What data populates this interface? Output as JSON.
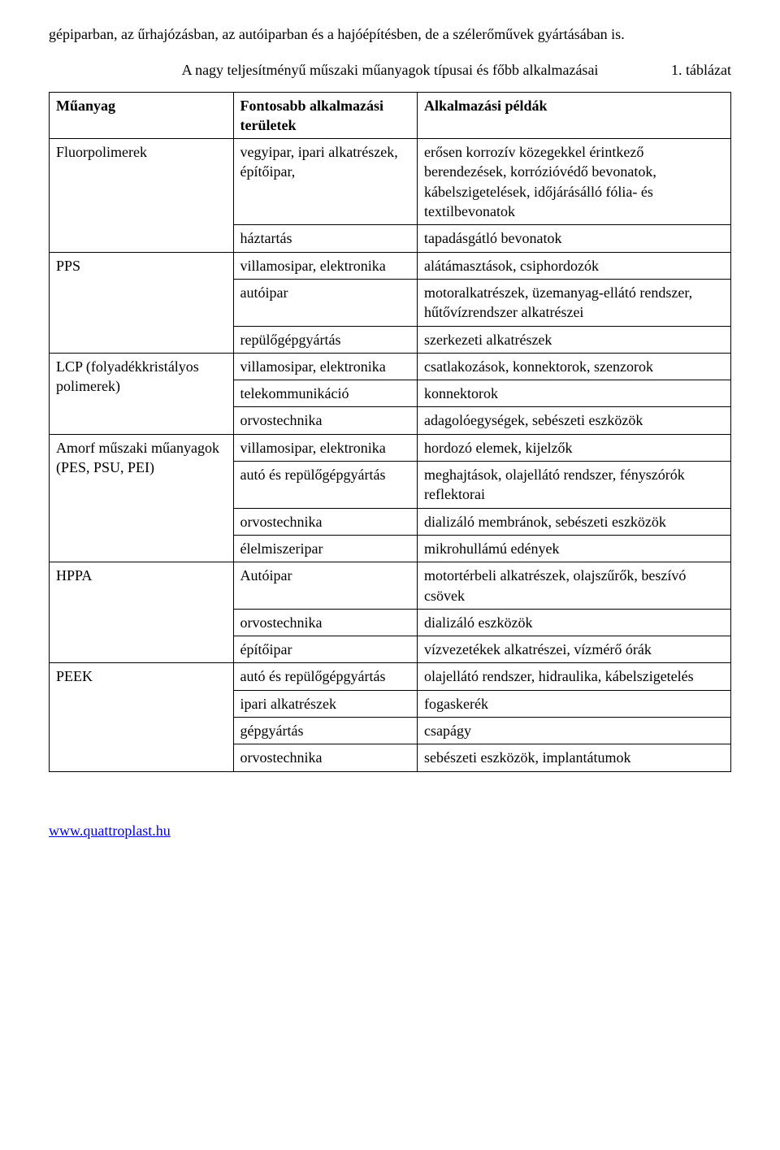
{
  "intro_text": "gépiparban, az űrhajózásban, az autóiparban és a hajóépítésben, de a szélerőművek gyártásában is.",
  "table": {
    "label": "1. táblázat",
    "caption": "A nagy teljesítményű műszaki műanyagok típusai és főbb alkalmazásai",
    "col_widths_percent": [
      27,
      27,
      46
    ],
    "border_color": "#000000",
    "font_family": "Times New Roman",
    "font_size_pt": 13,
    "headers": [
      "Műanyag",
      "Fontosabb alkalmazási területek",
      "Alkalmazási példák"
    ],
    "rows": [
      {
        "c1": "Fluorpolimerek",
        "c2": "vegyipar, ipari alkatrészek, építőipar,",
        "c3": "erősen korrozív közegekkel érintkező berendezések, korrózióvédő bevonatok, kábelszigetelések, időjárásálló fólia- és textilbevonatok",
        "rs1": 2
      },
      {
        "c2": "háztartás",
        "c3": "tapadásgátló bevonatok"
      },
      {
        "c1": "PPS",
        "c2": "villamosipar, elektronika",
        "c3": "alátámasztások, csiphordozók",
        "rs1": 3
      },
      {
        "c2": "autóipar",
        "c3": "motoralkatrészek, üzemanyag-ellátó rendszer, hűtővízrendszer alkatrészei"
      },
      {
        "c2": "repülőgépgyártás",
        "c3": "szerkezeti alkatrészek"
      },
      {
        "c1": "LCP (folyadékkristályos polimerek)",
        "c2": "villamosipar, elektronika",
        "c3": "csatlakozások, konnektorok, szenzorok",
        "rs1": 3
      },
      {
        "c2": "telekommunikáció",
        "c3": "konnektorok"
      },
      {
        "c2": "orvostechnika",
        "c3": "adagolóegységek, sebészeti eszközök"
      },
      {
        "c1": "Amorf műszaki műanyagok (PES, PSU, PEI)",
        "c2": "villamosipar, elektronika",
        "c3": "hordozó elemek, kijelzők",
        "rs1": 4
      },
      {
        "c2": "autó és repülőgépgyártás",
        "c3": "meghajtások, olajellátó rendszer, fényszórók reflektorai"
      },
      {
        "c2": "orvostechnika",
        "c3": "dializáló membránok, sebészeti eszközök"
      },
      {
        "c2": "élelmiszeripar",
        "c3": "mikrohullámú edények"
      },
      {
        "c1": "HPPA",
        "c2": "Autóipar",
        "c3": "motortérbeli alkatrészek, olajszűrők, beszívó csövek",
        "rs1": 3
      },
      {
        "c2": "orvostechnika",
        "c3": "dializáló eszközök"
      },
      {
        "c2": "építőipar",
        "c3": "vízvezetékek alkatrészei, vízmérő órák"
      },
      {
        "c1": "PEEK",
        "c2": "autó és repülőgépgyártás",
        "c3": "olajellátó rendszer, hidraulika, kábelszigetelés",
        "rs1": 4
      },
      {
        "c2": "ipari alkatrészek",
        "c3": "fogaskerék"
      },
      {
        "c2": "gépgyártás",
        "c3": "csapágy"
      },
      {
        "c2": "orvostechnika",
        "c3": "sebészeti eszközök, implantátumok"
      }
    ]
  },
  "footer_link_text": "www.quattroplast.hu",
  "footer_link_color": "#0000ee"
}
